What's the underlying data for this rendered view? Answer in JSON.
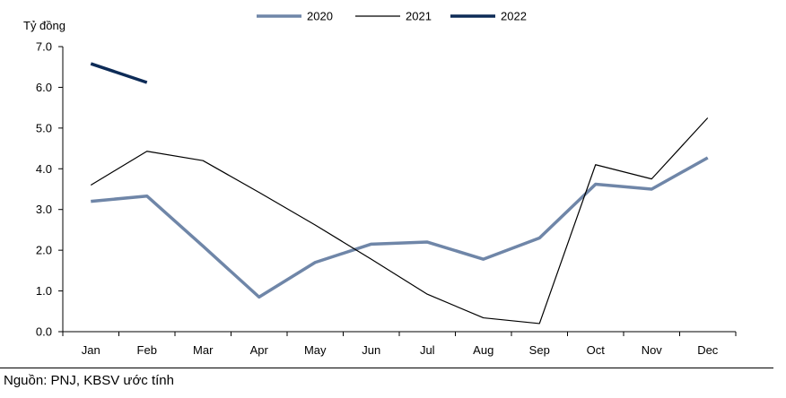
{
  "chart_data": {
    "type": "line",
    "unit_label": "Tỷ đồng",
    "categories": [
      "Jan",
      "Feb",
      "Mar",
      "Apr",
      "May",
      "Jun",
      "Jul",
      "Aug",
      "Sep",
      "Oct",
      "Nov",
      "Dec"
    ],
    "y_ticks": [
      "0.0",
      "1.0",
      "2.0",
      "3.0",
      "4.0",
      "5.0",
      "6.0",
      "7.0"
    ],
    "ylim": [
      0,
      7
    ],
    "grid": false,
    "legend_position": "top-center",
    "series": [
      {
        "name": "2020",
        "color": "#6f86a8",
        "width": 3.5,
        "values": [
          3.2,
          3.33,
          2.1,
          0.85,
          1.7,
          2.15,
          2.2,
          1.78,
          2.3,
          3.62,
          3.5,
          4.27
        ]
      },
      {
        "name": "2021",
        "color": "#000000",
        "width": 1.2,
        "values": [
          3.6,
          4.43,
          4.2,
          3.42,
          2.62,
          1.78,
          0.92,
          0.34,
          0.2,
          4.1,
          3.75,
          5.25
        ]
      },
      {
        "name": "2022",
        "color": "#0d2b57",
        "width": 3.5,
        "values": [
          6.58,
          6.12,
          null,
          null,
          null,
          null,
          null,
          null,
          null,
          null,
          null,
          null
        ]
      }
    ]
  },
  "source_text": "Nguồn: PNJ, KBSV ước tính"
}
